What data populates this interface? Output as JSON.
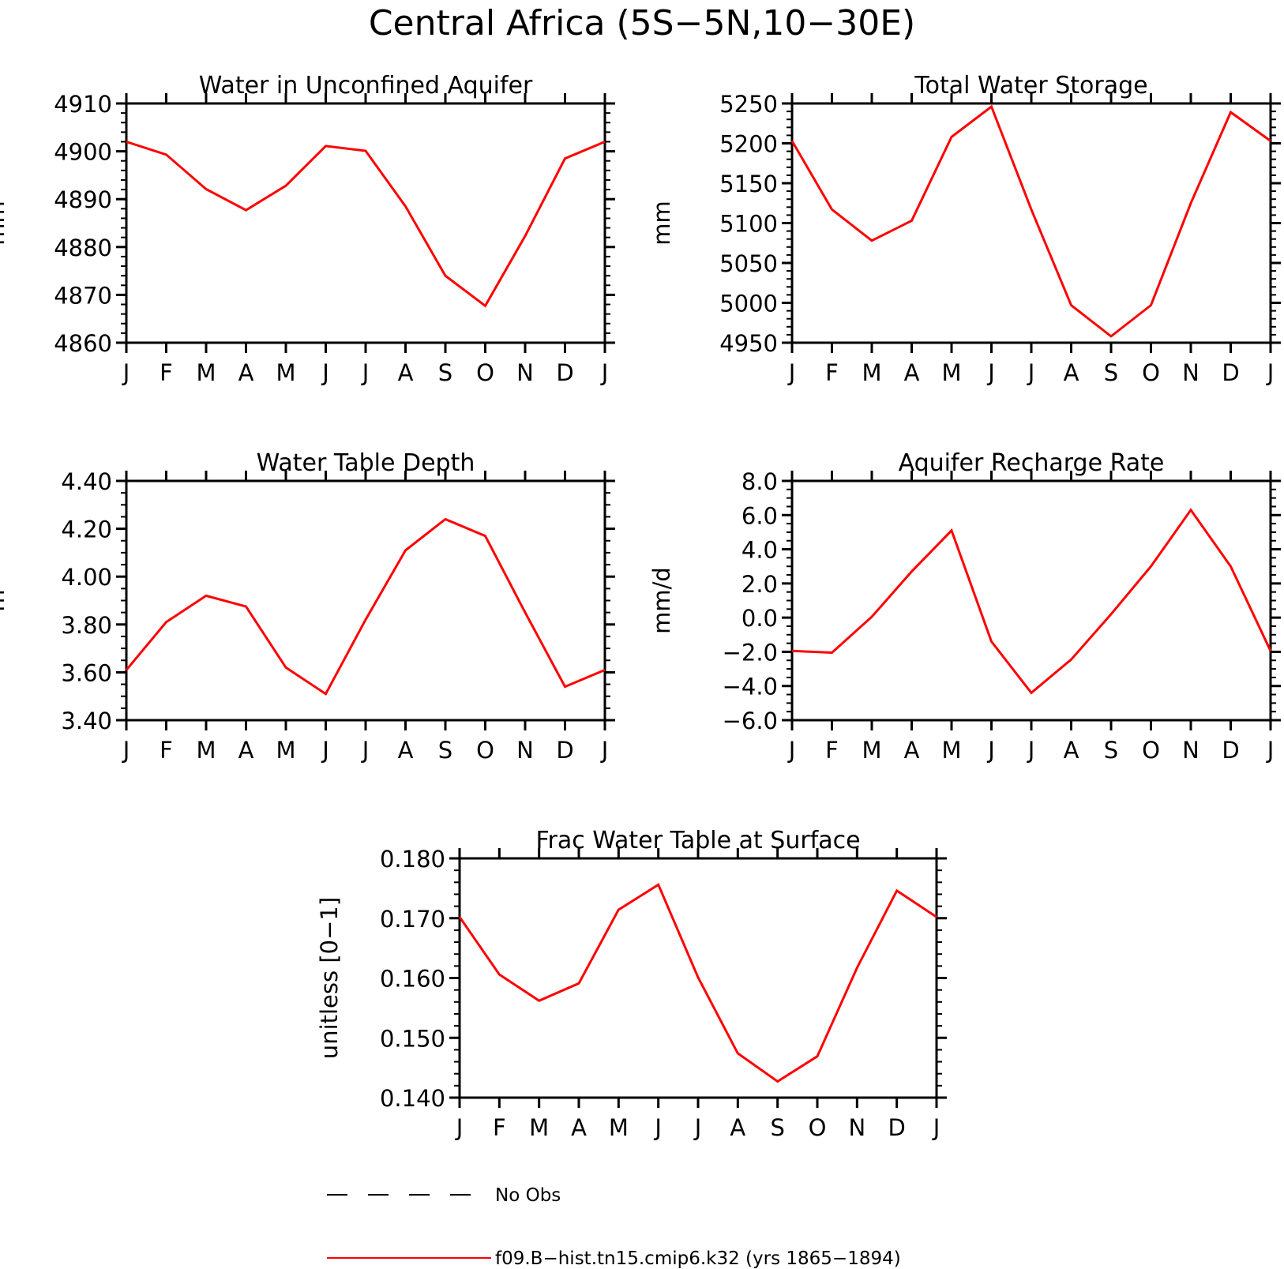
{
  "figure_title": "Central Africa (5S−5N,10−30E)",
  "legend": {
    "items": [
      {
        "label": "No Obs",
        "color": "#000000",
        "style": "dashed"
      },
      {
        "label": "f09.B−hist.tn15.cmip6.k32 (yrs 1865−1894)",
        "color": "#ff0000",
        "style": "solid"
      }
    ]
  },
  "chart_data": [
    {
      "type": "line",
      "title": "Water in Unconfined Aquifer",
      "xlabel": "",
      "ylabel": "mm",
      "categories": [
        "J",
        "F",
        "M",
        "A",
        "M",
        "J",
        "J",
        "A",
        "S",
        "O",
        "N",
        "D",
        "J"
      ],
      "ylim": [
        4860,
        4910
      ],
      "yticks": [
        4860,
        4870,
        4880,
        4890,
        4900,
        4910
      ],
      "ytick_labels": [
        "4860",
        "4870",
        "4880",
        "4890",
        "4900",
        "4910"
      ],
      "minor_per_major": 5,
      "series": [
        {
          "name": "f09.B−hist.tn15.cmip6.k32 (yrs 1865−1894)",
          "color": "#ff0000",
          "values": [
            4902.0,
            4899.3,
            4892.1,
            4887.7,
            4892.8,
            4901.1,
            4900.1,
            4888.5,
            4874.0,
            4867.7,
            4882.3,
            4898.5,
            4902.0
          ]
        }
      ]
    },
    {
      "type": "line",
      "title": "Total Water Storage",
      "xlabel": "",
      "ylabel": "mm",
      "categories": [
        "J",
        "F",
        "M",
        "A",
        "M",
        "J",
        "J",
        "A",
        "S",
        "O",
        "N",
        "D",
        "J"
      ],
      "ylim": [
        4950,
        5250
      ],
      "yticks": [
        4950,
        5000,
        5050,
        5100,
        5150,
        5200,
        5250
      ],
      "ytick_labels": [
        "4950",
        "5000",
        "5050",
        "5100",
        "5150",
        "5200",
        "5250"
      ],
      "minor_per_major": 5,
      "series": [
        {
          "name": "f09.B−hist.tn15.cmip6.k32 (yrs 1865−1894)",
          "color": "#ff0000",
          "values": [
            5203,
            5117,
            5078,
            5103,
            5208,
            5246,
            5117,
            4997,
            4958,
            4997,
            5125,
            5239,
            5203
          ]
        }
      ]
    },
    {
      "type": "line",
      "title": "Water Table Depth",
      "xlabel": "",
      "ylabel": "m",
      "categories": [
        "J",
        "F",
        "M",
        "A",
        "M",
        "J",
        "J",
        "A",
        "S",
        "O",
        "N",
        "D",
        "J"
      ],
      "ylim": [
        3.4,
        4.4
      ],
      "yticks": [
        3.4,
        3.6,
        3.8,
        4.0,
        4.2,
        4.4
      ],
      "ytick_labels": [
        "3.40",
        "3.60",
        "3.80",
        "4.00",
        "4.20",
        "4.40"
      ],
      "minor_per_major": 4,
      "series": [
        {
          "name": "f09.B−hist.tn15.cmip6.k32 (yrs 1865−1894)",
          "color": "#ff0000",
          "values": [
            3.61,
            3.81,
            3.92,
            3.875,
            3.62,
            3.51,
            3.82,
            4.11,
            4.24,
            4.17,
            3.85,
            3.54,
            3.61
          ]
        }
      ]
    },
    {
      "type": "line",
      "title": "Aquifer Recharge Rate",
      "xlabel": "",
      "ylabel": "mm/d",
      "categories": [
        "J",
        "F",
        "M",
        "A",
        "M",
        "J",
        "J",
        "A",
        "S",
        "O",
        "N",
        "D",
        "J"
      ],
      "ylim": [
        -6.0,
        8.0
      ],
      "yticks": [
        -6,
        -4,
        -2,
        0,
        2,
        4,
        6,
        8
      ],
      "ytick_labels": [
        "−6.0",
        "−4.0",
        "−2.0",
        "0.0",
        "2.0",
        "4.0",
        "6.0",
        "8.0"
      ],
      "minor_per_major": 4,
      "series": [
        {
          "name": "f09.B−hist.tn15.cmip6.k32 (yrs 1865−1894)",
          "color": "#ff0000",
          "values": [
            -1.95,
            -2.05,
            0.05,
            2.7,
            5.1,
            -1.4,
            -4.4,
            -2.45,
            0.2,
            3.0,
            6.3,
            3.0,
            -1.95
          ]
        }
      ]
    },
    {
      "type": "line",
      "title": "Frac Water Table at Surface",
      "xlabel": "",
      "ylabel": "unitless [0−1]",
      "categories": [
        "J",
        "F",
        "M",
        "A",
        "M",
        "J",
        "J",
        "A",
        "S",
        "O",
        "N",
        "D",
        "J"
      ],
      "ylim": [
        0.14,
        0.18
      ],
      "yticks": [
        0.14,
        0.15,
        0.16,
        0.17,
        0.18
      ],
      "ytick_labels": [
        "0.140",
        "0.150",
        "0.160",
        "0.170",
        "0.180"
      ],
      "minor_per_major": 5,
      "series": [
        {
          "name": "f09.B−hist.tn15.cmip6.k32 (yrs 1865−1894)",
          "color": "#ff0000",
          "values": [
            0.1702,
            0.1606,
            0.1562,
            0.1591,
            0.1714,
            0.1756,
            0.1601,
            0.1474,
            0.1427,
            0.1469,
            0.1617,
            0.1746,
            0.1702
          ]
        }
      ]
    }
  ]
}
